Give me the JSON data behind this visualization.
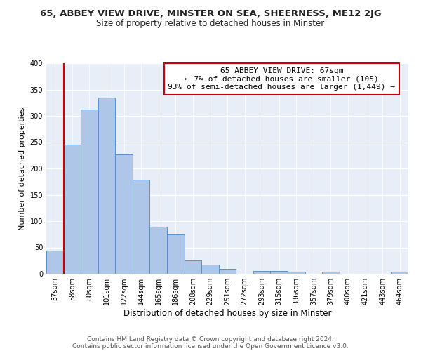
{
  "title": "65, ABBEY VIEW DRIVE, MINSTER ON SEA, SHEERNESS, ME12 2JG",
  "subtitle": "Size of property relative to detached houses in Minster",
  "xlabel": "Distribution of detached houses by size in Minster",
  "ylabel": "Number of detached properties",
  "bar_labels": [
    "37sqm",
    "58sqm",
    "80sqm",
    "101sqm",
    "122sqm",
    "144sqm",
    "165sqm",
    "186sqm",
    "208sqm",
    "229sqm",
    "251sqm",
    "272sqm",
    "293sqm",
    "315sqm",
    "336sqm",
    "357sqm",
    "379sqm",
    "400sqm",
    "421sqm",
    "443sqm",
    "464sqm"
  ],
  "bar_values": [
    44,
    246,
    312,
    335,
    227,
    179,
    90,
    75,
    26,
    18,
    10,
    0,
    5,
    6,
    4,
    0,
    4,
    0,
    0,
    0,
    4
  ],
  "bar_color": "#aec6e8",
  "bar_edge_color": "#5b8fc9",
  "vline_color": "#cc0000",
  "vline_x_data": 0.5,
  "annotation_text": "65 ABBEY VIEW DRIVE: 67sqm\n← 7% of detached houses are smaller (105)\n93% of semi-detached houses are larger (1,449) →",
  "annotation_box_color": "#ffffff",
  "annotation_box_edge": "#cc0000",
  "ylim": [
    0,
    400
  ],
  "yticks": [
    0,
    50,
    100,
    150,
    200,
    250,
    300,
    350,
    400
  ],
  "bg_color": "#e8eef8",
  "footer_line1": "Contains HM Land Registry data © Crown copyright and database right 2024.",
  "footer_line2": "Contains public sector information licensed under the Open Government Licence v3.0.",
  "title_fontsize": 9.5,
  "subtitle_fontsize": 8.5,
  "xlabel_fontsize": 8.5,
  "ylabel_fontsize": 8,
  "tick_fontsize": 7,
  "annotation_fontsize": 8,
  "footer_fontsize": 6.5
}
